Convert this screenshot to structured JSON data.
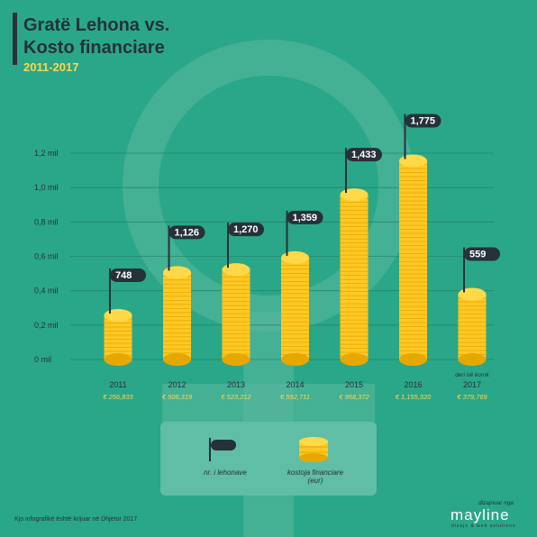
{
  "header": {
    "title_line1": "Gratë Lehona vs.",
    "title_line2": "Kosto financiare",
    "subtitle": "2011-2017"
  },
  "chart_data": {
    "type": "bar",
    "categories": [
      "2011",
      "2012",
      "2013",
      "2014",
      "2015",
      "2016",
      "2017"
    ],
    "category_note": [
      "",
      "",
      "",
      "",
      "",
      "",
      "deri në korrik"
    ],
    "series": [
      {
        "name": "kostoja financiare (eur)",
        "values": [
          256833,
          506319,
          523212,
          592711,
          958372,
          1155320,
          379769
        ],
        "labels": [
          "€ 256,833",
          "€ 506,319",
          "€ 523,212",
          "€ 592,711",
          "€ 958,372",
          "€ 1,155,320",
          "€ 379,769"
        ]
      },
      {
        "name": "nr. i lehonave",
        "values": [
          748,
          1126,
          1270,
          1359,
          1433,
          1775,
          559
        ],
        "labels": [
          "748",
          "1,126",
          "1,270",
          "1,359",
          "1,433",
          "1,775",
          "559"
        ]
      }
    ],
    "yticks": [
      0,
      200000,
      400000,
      600000,
      800000,
      1000000,
      1200000
    ],
    "ytick_labels": [
      "0 mil",
      "0,2 mil",
      "0,4 mil",
      "0,6 mil",
      "0,8 mil",
      "1,0 mil",
      "1,2 mil"
    ],
    "ylim": [
      0,
      1200000
    ],
    "grid": true,
    "legend_position": "bottom-center"
  },
  "colors": {
    "background": "#2aa788",
    "coin": "#ffc824",
    "coin_light": "#ffd94a",
    "coin_dark": "#e6a800",
    "flag": "#26313a"
  },
  "legend": {
    "flag_label": "nr. i lehonave",
    "coin_label_line1": "kostoja financiare",
    "coin_label_line2": "(eur)"
  },
  "footer": {
    "note": "Kjo infografikë është krijuar në Dhjetor 2017",
    "designed_by": "dizajnuar nga",
    "brand": "mayline",
    "brand_tagline": "dizajn & web solutions"
  }
}
